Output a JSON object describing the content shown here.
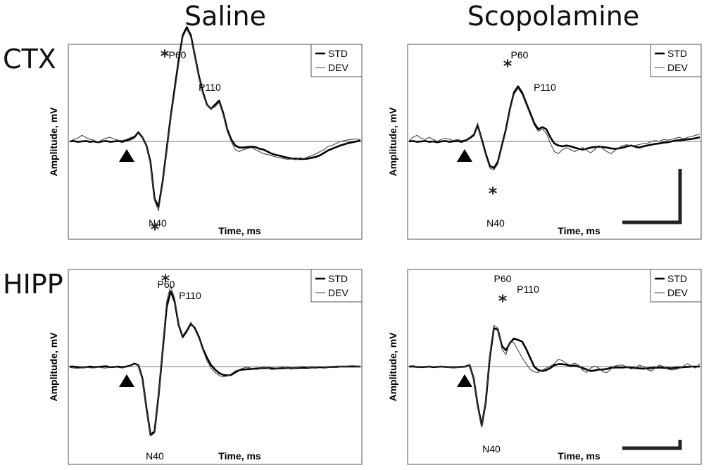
{
  "figure": {
    "column_titles": [
      "Saline",
      "Scopolamine"
    ],
    "row_labels": [
      "CTX",
      "HIPP"
    ]
  },
  "chart_data": [
    {
      "type": "line",
      "panel": "CTX Saline",
      "xlabel": "Time, ms",
      "ylabel": "Amplitude, mV",
      "legend": [
        "STD",
        "DEV"
      ],
      "legend_position": "top-right",
      "stimulus_marker": "triangle",
      "zero_line": true,
      "peak_labels": [
        {
          "text": "N40",
          "star": true
        },
        {
          "text": "P60",
          "star": true
        },
        {
          "text": "P110",
          "star": false
        }
      ],
      "series": [
        {
          "name": "STD",
          "values": [
            0,
            0.01,
            -0.01,
            0,
            0.01,
            -0.01,
            0,
            -0.02,
            0,
            0.01,
            -0.01,
            0,
            0.01,
            -0.01,
            0.02,
            0.05,
            0.1,
            0.22,
            0.1,
            -0.1,
            -0.5,
            -1.4,
            -1.6,
            -1.0,
            -0.2,
            0.6,
            1.3,
            2.0,
            2.6,
            2.8,
            2.6,
            2.1,
            1.6,
            1.2,
            0.9,
            0.8,
            0.9,
            1.0,
            0.7,
            0.3,
            0.05,
            -0.1,
            -0.15,
            -0.15,
            -0.14,
            -0.13,
            -0.14,
            -0.18,
            -0.2,
            -0.25,
            -0.3,
            -0.33,
            -0.35,
            -0.38,
            -0.4,
            -0.42,
            -0.42,
            -0.43,
            -0.43,
            -0.42,
            -0.4,
            -0.38,
            -0.34,
            -0.28,
            -0.22,
            -0.18,
            -0.14,
            -0.1,
            -0.07,
            -0.04,
            -0.02,
            0,
            0.02
          ]
        },
        {
          "name": "DEV",
          "values": [
            0,
            0.05,
            0.08,
            0.15,
            0.1,
            0.05,
            0.03,
            -0.02,
            0.04,
            0.08,
            0.1,
            0.06,
            0.03,
            0.02,
            0.05,
            0.09,
            0.13,
            0.25,
            0.12,
            -0.12,
            -0.55,
            -1.45,
            -1.7,
            -1.05,
            -0.25,
            0.55,
            1.2,
            1.9,
            2.55,
            2.75,
            2.55,
            2.05,
            1.55,
            1.15,
            0.9,
            0.8,
            0.85,
            0.95,
            0.65,
            0.25,
            0.0,
            -0.2,
            -0.25,
            -0.2,
            -0.18,
            -0.15,
            -0.2,
            -0.25,
            -0.3,
            -0.32,
            -0.35,
            -0.38,
            -0.4,
            -0.42,
            -0.44,
            -0.43,
            -0.45,
            -0.4,
            -0.42,
            -0.38,
            -0.35,
            -0.3,
            -0.25,
            -0.2,
            -0.12,
            -0.1,
            -0.05,
            0.0,
            0.02,
            0.04,
            0.05,
            0.06,
            0.04
          ]
        }
      ]
    },
    {
      "type": "line",
      "panel": "CTX Scopolamine",
      "xlabel": "Time, ms",
      "ylabel": "Amplitude, mV",
      "legend": [
        "STD",
        "DEV"
      ],
      "legend_position": "top-right",
      "stimulus_marker": "triangle",
      "zero_line": true,
      "peak_labels": [
        {
          "text": "N40",
          "star": true
        },
        {
          "text": "P60",
          "star": true
        },
        {
          "text": "P110",
          "star": false
        }
      ],
      "series": [
        {
          "name": "STD",
          "values": [
            0,
            0.01,
            -0.01,
            0,
            0.01,
            -0.01,
            0,
            -0.02,
            0,
            0.01,
            -0.01,
            0,
            0.01,
            -0.01,
            0.02,
            0.08,
            0.15,
            0.4,
            0.05,
            -0.3,
            -0.6,
            -0.65,
            -0.5,
            -0.1,
            0.3,
            0.8,
            1.2,
            1.35,
            1.2,
            0.95,
            0.7,
            0.45,
            0.3,
            0.35,
            0.3,
            0.1,
            -0.05,
            -0.1,
            -0.12,
            -0.1,
            -0.12,
            -0.15,
            -0.18,
            -0.2,
            -0.18,
            -0.15,
            -0.14,
            -0.13,
            -0.14,
            -0.15,
            -0.17,
            -0.18,
            -0.17,
            -0.15,
            -0.12,
            -0.1,
            -0.13,
            -0.15,
            -0.12,
            -0.1,
            -0.08,
            -0.06,
            -0.05,
            -0.03,
            -0.02,
            0,
            0.02,
            0.03,
            0.04,
            0.05,
            0.06,
            0.08,
            0.1
          ]
        },
        {
          "name": "DEV",
          "values": [
            0.02,
            0.1,
            0.15,
            0.08,
            0.05,
            0.1,
            0.05,
            0.0,
            0.05,
            0.08,
            0.05,
            0.02,
            0.05,
            0.02,
            0.04,
            0.1,
            0.18,
            0.45,
            0.0,
            -0.35,
            -0.65,
            -0.7,
            -0.55,
            -0.15,
            0.25,
            0.75,
            1.15,
            1.3,
            1.15,
            0.9,
            0.65,
            0.4,
            0.25,
            0.3,
            0.2,
            -0.05,
            -0.25,
            -0.3,
            -0.2,
            -0.15,
            -0.2,
            -0.25,
            -0.2,
            -0.15,
            -0.22,
            -0.28,
            -0.2,
            -0.1,
            -0.18,
            -0.25,
            -0.3,
            -0.22,
            -0.15,
            -0.1,
            -0.08,
            -0.12,
            -0.1,
            -0.08,
            -0.05,
            -0.05,
            0.0,
            0.02,
            0.0,
            0.05,
            0.03,
            0.05,
            0.08,
            0.1,
            0.06,
            0.1,
            0.12,
            0.15,
            0.18
          ]
        }
      ]
    },
    {
      "type": "line",
      "panel": "HIPP Saline",
      "xlabel": "Time, ms",
      "ylabel": "Amplitude, mV",
      "legend": [
        "STD",
        "DEV"
      ],
      "legend_position": "top-right",
      "stimulus_marker": "triangle",
      "zero_line": true,
      "peak_labels": [
        {
          "text": "N40",
          "star": false
        },
        {
          "text": "P60",
          "star": true
        },
        {
          "text": "P110",
          "star": false
        }
      ],
      "series": [
        {
          "name": "STD",
          "values": [
            0,
            0,
            -0.02,
            -0.03,
            -0.02,
            0,
            -0.02,
            -0.01,
            0,
            0.01,
            -0.02,
            -0.01,
            0,
            -0.02,
            0.0,
            0.03,
            0.1,
            0.05,
            -0.4,
            -1.4,
            -2.3,
            -2.2,
            -1.0,
            0.5,
            2.0,
            2.55,
            2.2,
            1.4,
            1.0,
            1.2,
            1.45,
            1.3,
            1.0,
            0.6,
            0.3,
            0.05,
            -0.1,
            -0.22,
            -0.28,
            -0.3,
            -0.28,
            -0.2,
            -0.12,
            -0.1,
            -0.09,
            -0.08,
            -0.07,
            -0.06,
            -0.05,
            -0.05,
            -0.06,
            -0.07,
            -0.06,
            -0.05,
            -0.05,
            -0.06,
            -0.05,
            -0.04,
            -0.04,
            -0.04,
            -0.03,
            -0.03,
            -0.02,
            -0.03,
            -0.02,
            -0.01,
            -0.01,
            0,
            0,
            0,
            0,
            0,
            0
          ]
        },
        {
          "name": "DEV",
          "values": [
            -0.03,
            -0.05,
            -0.06,
            -0.04,
            -0.02,
            -0.04,
            -0.05,
            -0.02,
            -0.04,
            -0.05,
            -0.02,
            0,
            -0.03,
            -0.05,
            -0.02,
            0.02,
            0.08,
            0.03,
            -0.45,
            -1.45,
            -2.35,
            -2.25,
            -1.05,
            0.6,
            2.2,
            2.75,
            2.3,
            1.45,
            1.05,
            1.25,
            1.5,
            1.25,
            0.95,
            0.55,
            0.2,
            -0.05,
            -0.2,
            -0.3,
            -0.35,
            -0.32,
            -0.25,
            -0.15,
            -0.1,
            -0.05,
            -0.02,
            -0.06,
            -0.1,
            -0.08,
            -0.02,
            -0.05,
            -0.1,
            -0.08,
            -0.03,
            -0.02,
            -0.06,
            -0.08,
            -0.04,
            -0.02,
            0,
            -0.03,
            -0.05,
            -0.02,
            0.0,
            -0.02,
            -0.03,
            0,
            0.02,
            0.01,
            0,
            0.02,
            0.03,
            0.02,
            0.01
          ]
        }
      ]
    },
    {
      "type": "line",
      "panel": "HIPP Scopolamine",
      "xlabel": "Time, ms",
      "ylabel": "Amplitude, mV",
      "legend": [
        "STD",
        "DEV"
      ],
      "legend_position": "top-right",
      "stimulus_marker": "triangle",
      "zero_line": true,
      "peak_labels": [
        {
          "text": "N40",
          "star": false
        },
        {
          "text": "P60",
          "star": true
        },
        {
          "text": "P110",
          "star": false
        }
      ],
      "series": [
        {
          "name": "STD",
          "values": [
            0,
            0.0,
            -0.01,
            -0.02,
            -0.01,
            0,
            -0.02,
            -0.01,
            0,
            -0.01,
            -0.02,
            -0.03,
            -0.02,
            -0.01,
            0.0,
            0.05,
            -0.4,
            -1.3,
            -2.0,
            -1.2,
            0.3,
            1.3,
            1.25,
            0.7,
            0.55,
            0.8,
            0.95,
            0.9,
            0.85,
            0.6,
            0.3,
            0.0,
            -0.12,
            -0.15,
            -0.12,
            -0.05,
            0.05,
            0.08,
            0.08,
            0.06,
            0.02,
            0.03,
            0.0,
            -0.05,
            -0.1,
            -0.15,
            -0.13,
            -0.1,
            -0.1,
            -0.08,
            -0.04,
            -0.03,
            -0.03,
            -0.03,
            -0.02,
            -0.04,
            -0.05,
            -0.06,
            -0.07,
            -0.06,
            -0.05,
            -0.04,
            -0.03,
            -0.04,
            -0.05,
            -0.06,
            -0.04,
            -0.03,
            -0.02,
            -0.01,
            0,
            0,
            0
          ]
        },
        {
          "name": "DEV",
          "values": [
            0.02,
            0.03,
            0.0,
            -0.02,
            0,
            0.02,
            0,
            -0.02,
            0.01,
            -0.01,
            -0.03,
            -0.05,
            -0.03,
            -0.02,
            0.0,
            0.04,
            -0.42,
            -1.35,
            -2.05,
            -1.15,
            0.4,
            1.4,
            1.3,
            0.6,
            0.4,
            0.85,
            0.8,
            0.55,
            0.3,
            0.1,
            -0.1,
            -0.18,
            -0.2,
            -0.12,
            -0.05,
            0.02,
            0.1,
            0.25,
            0.2,
            0.1,
            0.05,
            0.12,
            0.05,
            -0.12,
            -0.2,
            -0.05,
            0.02,
            -0.05,
            -0.18,
            -0.2,
            -0.08,
            0.02,
            0.05,
            0.05,
            -0.02,
            -0.08,
            -0.05,
            0.05,
            0.0,
            -0.1,
            -0.15,
            -0.05,
            0.05,
            0.0,
            -0.08,
            -0.12,
            -0.1,
            -0.05,
            0.02,
            0.1,
            0.0,
            -0.05,
            0.1
          ]
        }
      ]
    }
  ]
}
